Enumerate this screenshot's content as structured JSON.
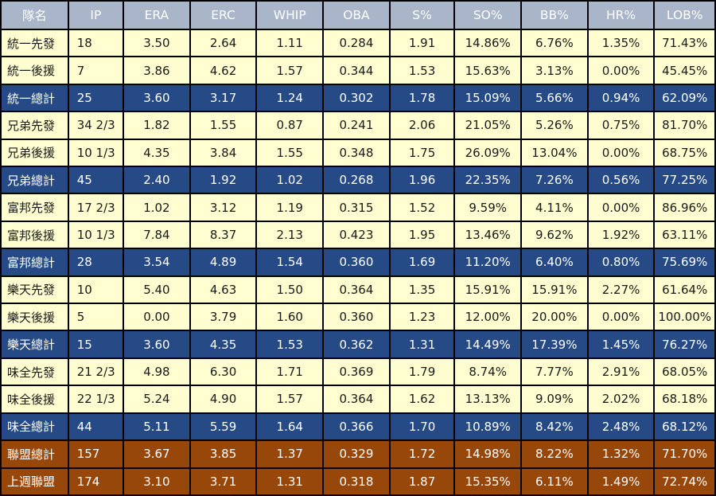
{
  "colors": {
    "header_bg": "#a9b5c9",
    "starter_bg": "#fefed0",
    "total_bg": "#254a86",
    "league_bg": "#98470a",
    "border": "#000000"
  },
  "header": [
    "隊名",
    "IP",
    "ERA",
    "ERC",
    "WHIP",
    "OBA",
    "S%",
    "SO%",
    "BB%",
    "HR%",
    "LOB%"
  ],
  "rows": [
    {
      "type": "starter",
      "cells": [
        "統一先發",
        "18",
        "3.50",
        "2.64",
        "1.11",
        "0.284",
        "1.91",
        "14.86%",
        "6.76%",
        "1.35%",
        "71.43%"
      ]
    },
    {
      "type": "relief",
      "cells": [
        "統一後援",
        "7",
        "3.86",
        "4.62",
        "1.57",
        "0.344",
        "1.53",
        "15.63%",
        "3.13%",
        "0.00%",
        "45.45%"
      ]
    },
    {
      "type": "total",
      "cells": [
        "統一總計",
        "25",
        "3.60",
        "3.17",
        "1.24",
        "0.302",
        "1.78",
        "15.09%",
        "5.66%",
        "0.94%",
        "62.09%"
      ]
    },
    {
      "type": "starter",
      "cells": [
        "兄弟先發",
        "34 2/3",
        "1.82",
        "1.55",
        "0.87",
        "0.241",
        "2.06",
        "21.05%",
        "5.26%",
        "0.75%",
        "81.70%"
      ]
    },
    {
      "type": "relief",
      "cells": [
        "兄弟後援",
        "10 1/3",
        "4.35",
        "3.84",
        "1.55",
        "0.348",
        "1.75",
        "26.09%",
        "13.04%",
        "0.00%",
        "68.75%"
      ]
    },
    {
      "type": "total",
      "cells": [
        "兄弟總計",
        "45",
        "2.40",
        "1.92",
        "1.02",
        "0.268",
        "1.96",
        "22.35%",
        "7.26%",
        "0.56%",
        "77.25%"
      ]
    },
    {
      "type": "starter",
      "cells": [
        "富邦先發",
        "17 2/3",
        "1.02",
        "3.12",
        "1.19",
        "0.315",
        "1.52",
        "9.59%",
        "4.11%",
        "0.00%",
        "86.96%"
      ]
    },
    {
      "type": "relief",
      "cells": [
        "富邦後援",
        "10 1/3",
        "7.84",
        "8.37",
        "2.13",
        "0.423",
        "1.95",
        "13.46%",
        "9.62%",
        "1.92%",
        "63.11%"
      ]
    },
    {
      "type": "total",
      "cells": [
        "富邦總計",
        "28",
        "3.54",
        "4.89",
        "1.54",
        "0.360",
        "1.69",
        "11.20%",
        "6.40%",
        "0.80%",
        "75.69%"
      ]
    },
    {
      "type": "starter",
      "cells": [
        "樂天先發",
        "10",
        "5.40",
        "4.63",
        "1.50",
        "0.364",
        "1.35",
        "15.91%",
        "15.91%",
        "2.27%",
        "61.64%"
      ]
    },
    {
      "type": "relief",
      "cells": [
        "樂天後援",
        "5",
        "0.00",
        "3.79",
        "1.60",
        "0.360",
        "1.23",
        "12.00%",
        "20.00%",
        "0.00%",
        "100.00%"
      ]
    },
    {
      "type": "total",
      "cells": [
        "樂天總計",
        "15",
        "3.60",
        "4.35",
        "1.53",
        "0.362",
        "1.31",
        "14.49%",
        "17.39%",
        "1.45%",
        "76.27%"
      ]
    },
    {
      "type": "starter",
      "cells": [
        "味全先發",
        "21 2/3",
        "4.98",
        "6.30",
        "1.71",
        "0.369",
        "1.79",
        "8.74%",
        "7.77%",
        "2.91%",
        "68.05%"
      ]
    },
    {
      "type": "relief",
      "cells": [
        "味全後援",
        "22 1/3",
        "5.24",
        "4.90",
        "1.57",
        "0.364",
        "1.62",
        "13.13%",
        "9.09%",
        "2.02%",
        "68.18%"
      ]
    },
    {
      "type": "total",
      "cells": [
        "味全總計",
        "44",
        "5.11",
        "5.59",
        "1.64",
        "0.366",
        "1.70",
        "10.89%",
        "8.42%",
        "2.48%",
        "68.12%"
      ]
    },
    {
      "type": "league",
      "cells": [
        "聯盟總計",
        "157",
        "3.67",
        "3.85",
        "1.37",
        "0.329",
        "1.72",
        "14.98%",
        "8.22%",
        "1.32%",
        "71.70%"
      ]
    },
    {
      "type": "league",
      "cells": [
        "上週聯盟",
        "174",
        "3.10",
        "3.71",
        "1.31",
        "0.318",
        "1.87",
        "15.35%",
        "6.11%",
        "1.49%",
        "72.74%"
      ]
    }
  ]
}
